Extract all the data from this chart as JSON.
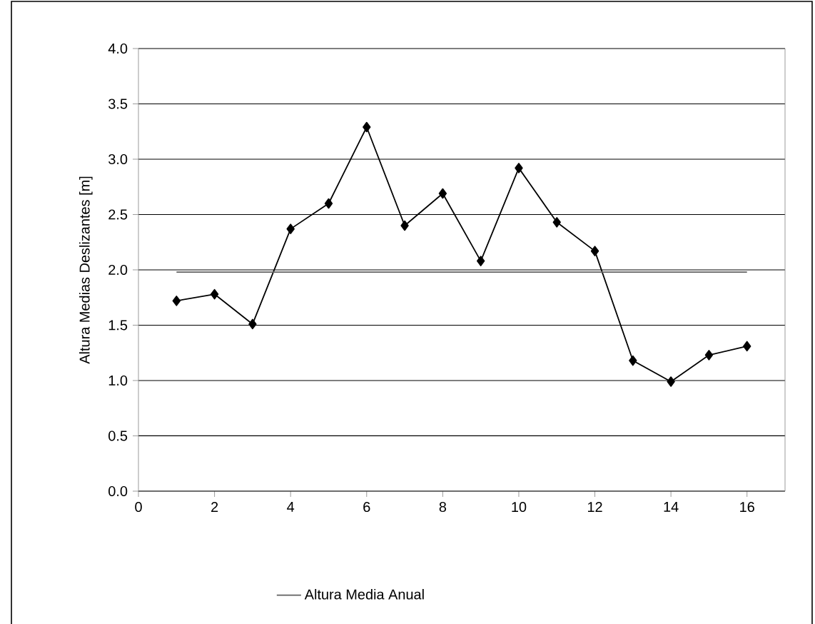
{
  "chart_data": {
    "type": "line",
    "ylabel": "Altura Medias Deslizantes [m]",
    "x": [
      1,
      2,
      3,
      4,
      5,
      6,
      7,
      8,
      9,
      10,
      11,
      12,
      13,
      14,
      15,
      16
    ],
    "series": [
      {
        "color": "#000000",
        "marker": "diamond",
        "values": [
          1.72,
          1.78,
          1.51,
          2.37,
          2.6,
          3.29,
          2.4,
          2.69,
          2.08,
          2.92,
          2.43,
          2.17,
          1.18,
          0.99,
          1.23,
          1.31
        ]
      },
      {
        "name": "Altura Media Anual",
        "color": "#606060",
        "marker": "none",
        "x": [
          1,
          16
        ],
        "values": [
          1.98,
          1.98
        ]
      }
    ],
    "xlim": [
      0,
      17
    ],
    "xticks": [
      0,
      2,
      4,
      6,
      8,
      10,
      12,
      14,
      16
    ],
    "ylim": [
      0,
      4
    ],
    "yticks": [
      {
        "value": 0,
        "label": "0.0"
      },
      {
        "value": 0.5,
        "label": "0.5"
      },
      {
        "value": 1,
        "label": "1.0"
      },
      {
        "value": 1.5,
        "label": "1.5"
      },
      {
        "value": 2,
        "label": "2.0"
      },
      {
        "value": 2.5,
        "label": "2.5"
      },
      {
        "value": 3,
        "label": "3.0"
      },
      {
        "value": 3.5,
        "label": "3.5"
      },
      {
        "value": 4,
        "label": "4.0"
      }
    ],
    "grid": "y",
    "legend": "bottom",
    "line_style": "solid"
  }
}
